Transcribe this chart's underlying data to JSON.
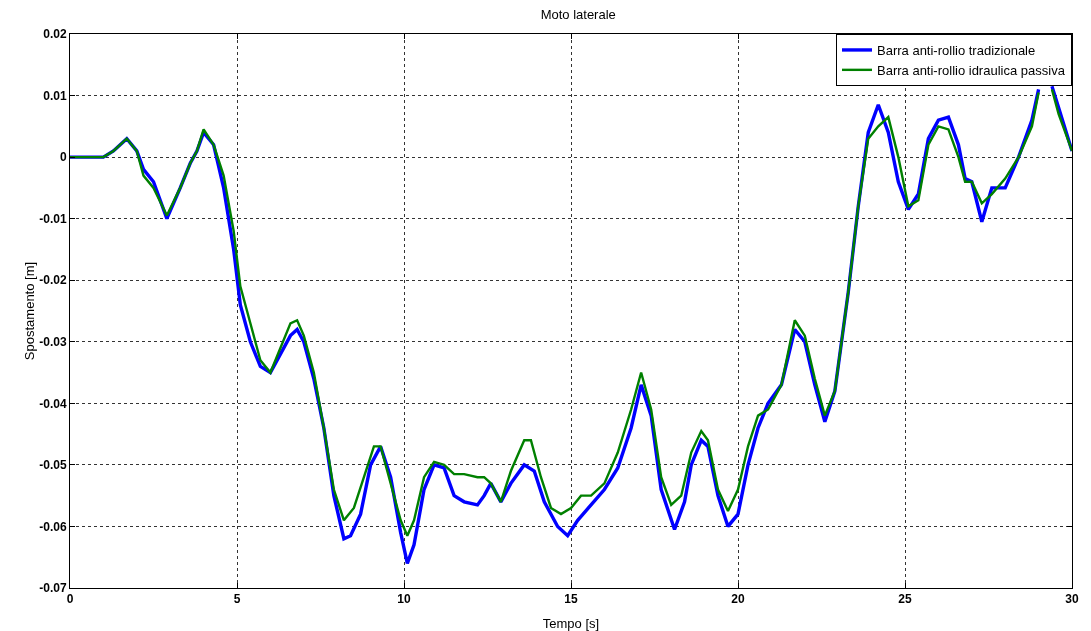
{
  "chart_data": {
    "type": "line",
    "title": "Moto laterale",
    "xlabel": "Tempo [s]",
    "ylabel": "Spostamento [m]",
    "xlim": [
      0,
      30
    ],
    "xticks": [
      0,
      5,
      10,
      15,
      20,
      25,
      30
    ],
    "ylim": [
      -0.07,
      0.02
    ],
    "yticks": [
      -0.07,
      -0.06,
      -0.05,
      -0.04,
      -0.03,
      -0.02,
      -0.01,
      0,
      0.01,
      0.02
    ],
    "grid": true,
    "legend": "top right",
    "line_style": "solid",
    "marker": "none",
    "series": [
      {
        "name": "Barra anti-rollio tradizionale",
        "color": "#0000ff",
        "x": [
          0,
          1,
          1.3,
          1.7,
          2.0,
          2.2,
          2.5,
          2.9,
          3.3,
          3.6,
          3.8,
          4.0,
          4.3,
          4.6,
          4.9,
          5.1,
          5.4,
          5.7,
          6.0,
          6.3,
          6.6,
          6.8,
          7.0,
          7.3,
          7.6,
          7.9,
          8.2,
          8.4,
          8.7,
          9.0,
          9.3,
          9.6,
          9.9,
          10.1,
          10.3,
          10.6,
          10.9,
          11.2,
          11.5,
          11.8,
          12.2,
          12.4,
          12.6,
          12.9,
          13.2,
          13.6,
          13.9,
          14.2,
          14.6,
          14.9,
          15.2,
          15.6,
          16.0,
          16.4,
          16.8,
          17.1,
          17.4,
          17.7,
          18.1,
          18.4,
          18.6,
          18.9,
          19.1,
          19.4,
          19.7,
          20.0,
          20.3,
          20.6,
          20.9,
          21.3,
          21.7,
          22.0,
          22.3,
          22.6,
          22.9,
          23.3,
          23.6,
          23.9,
          24.2,
          24.5,
          24.8,
          25.1,
          25.4,
          25.7,
          26.0,
          26.3,
          26.6,
          26.8,
          27.0,
          27.3,
          27.6,
          28.0,
          28.4,
          28.8,
          29.0,
          29.2,
          29.4,
          29.6,
          30.0
        ],
        "values": [
          0,
          0,
          0.001,
          0.003,
          0.001,
          -0.002,
          -0.004,
          -0.01,
          -0.005,
          -0.001,
          0.001,
          0.004,
          0.002,
          -0.005,
          -0.015,
          -0.024,
          -0.03,
          -0.034,
          -0.035,
          -0.032,
          -0.029,
          -0.028,
          -0.03,
          -0.036,
          -0.044,
          -0.055,
          -0.062,
          -0.0615,
          -0.058,
          -0.05,
          -0.047,
          -0.052,
          -0.061,
          -0.066,
          -0.063,
          -0.054,
          -0.05,
          -0.0505,
          -0.055,
          -0.056,
          -0.0565,
          -0.055,
          -0.053,
          -0.056,
          -0.053,
          -0.05,
          -0.051,
          -0.056,
          -0.06,
          -0.0615,
          -0.059,
          -0.0565,
          -0.054,
          -0.0505,
          -0.044,
          -0.037,
          -0.042,
          -0.054,
          -0.0605,
          -0.056,
          -0.05,
          -0.046,
          -0.047,
          -0.055,
          -0.06,
          -0.058,
          -0.05,
          -0.044,
          -0.04,
          -0.037,
          -0.028,
          -0.03,
          -0.037,
          -0.043,
          -0.038,
          -0.022,
          -0.008,
          0.004,
          0.0085,
          0.004,
          -0.004,
          -0.0085,
          -0.006,
          0.003,
          0.006,
          0.0065,
          0.002,
          -0.0035,
          -0.004,
          -0.0105,
          -0.005,
          -0.005,
          0.0,
          0.006,
          0.011,
          null,
          0.0115,
          0.008,
          0.001
        ]
      },
      {
        "name": "Barra anti-rollio idraulica passiva",
        "color": "#008000",
        "x": [
          0,
          1,
          1.3,
          1.7,
          2.0,
          2.2,
          2.5,
          2.9,
          3.3,
          3.6,
          3.8,
          4.0,
          4.3,
          4.6,
          4.9,
          5.1,
          5.4,
          5.7,
          6.0,
          6.3,
          6.6,
          6.8,
          7.0,
          7.3,
          7.6,
          7.9,
          8.2,
          8.5,
          8.8,
          9.1,
          9.3,
          9.6,
          9.9,
          10.1,
          10.3,
          10.6,
          10.9,
          11.2,
          11.5,
          11.8,
          12.2,
          12.4,
          12.6,
          12.9,
          13.2,
          13.6,
          13.8,
          14.1,
          14.4,
          14.7,
          15.0,
          15.3,
          15.6,
          16.0,
          16.4,
          16.8,
          17.1,
          17.4,
          17.7,
          18.0,
          18.3,
          18.6,
          18.9,
          19.1,
          19.4,
          19.7,
          20.0,
          20.3,
          20.6,
          20.9,
          21.3,
          21.7,
          22.0,
          22.3,
          22.6,
          22.9,
          23.3,
          23.6,
          23.9,
          24.2,
          24.5,
          24.8,
          25.1,
          25.4,
          25.7,
          26.0,
          26.3,
          26.6,
          26.8,
          27.0,
          27.3,
          27.6,
          28.0,
          28.4,
          28.8,
          29.0,
          29.2,
          29.4,
          29.6,
          30.0
        ],
        "values": [
          0,
          0,
          0.001,
          0.003,
          0.001,
          -0.003,
          -0.005,
          -0.0095,
          -0.005,
          -0.001,
          0.001,
          0.0045,
          0.002,
          -0.003,
          -0.012,
          -0.021,
          -0.027,
          -0.033,
          -0.035,
          -0.031,
          -0.027,
          -0.0265,
          -0.029,
          -0.035,
          -0.044,
          -0.054,
          -0.059,
          -0.057,
          -0.052,
          -0.047,
          -0.047,
          -0.053,
          -0.059,
          -0.0615,
          -0.059,
          -0.052,
          -0.0495,
          -0.05,
          -0.0515,
          -0.0515,
          -0.052,
          -0.052,
          -0.053,
          -0.056,
          -0.051,
          -0.046,
          -0.046,
          -0.052,
          -0.057,
          -0.058,
          -0.057,
          -0.055,
          -0.055,
          -0.053,
          -0.048,
          -0.041,
          -0.035,
          -0.041,
          -0.052,
          -0.0565,
          -0.055,
          -0.048,
          -0.0445,
          -0.046,
          -0.054,
          -0.0575,
          -0.054,
          -0.047,
          -0.042,
          -0.041,
          -0.037,
          -0.0265,
          -0.029,
          -0.036,
          -0.042,
          -0.038,
          -0.022,
          -0.008,
          0.003,
          0.005,
          0.0065,
          0.0,
          -0.008,
          -0.007,
          0.002,
          0.005,
          0.0045,
          0.0,
          -0.004,
          -0.004,
          -0.0075,
          -0.006,
          -0.0035,
          0.0,
          0.005,
          0.0105,
          null,
          0.011,
          0.007,
          0.001
        ]
      }
    ]
  }
}
